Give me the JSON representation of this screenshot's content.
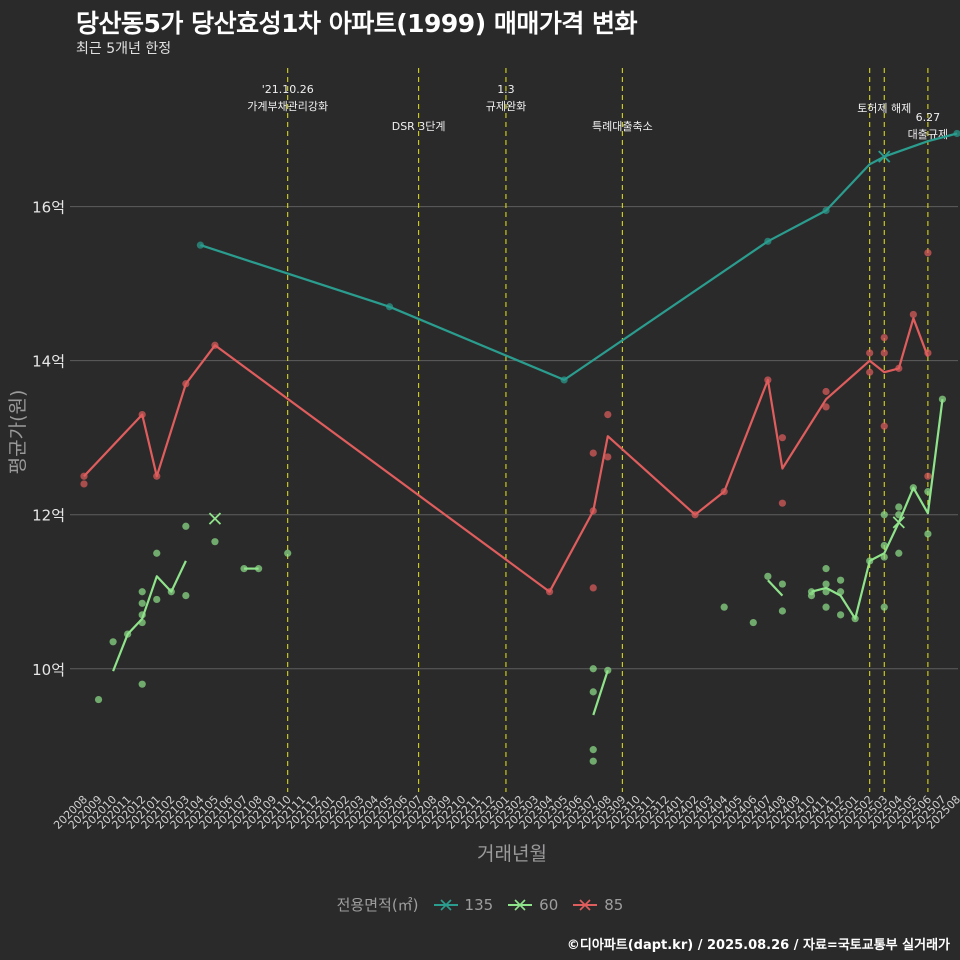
{
  "title": "당산동5가 당산효성1차 아파트(1999) 매매가격 변화",
  "subtitle": "최근 5개년 한정",
  "caption": "©디아파트(dapt.kr) / 2025.08.26 / 자료=국토교통부 실거래가",
  "chart_data": {
    "type": "line",
    "xlabel": "거래년월",
    "ylabel": "평균가(원)",
    "y_ticks": [
      {
        "value": 10,
        "label": "10억"
      },
      {
        "value": 12,
        "label": "12억"
      },
      {
        "value": 14,
        "label": "14억"
      },
      {
        "value": 16,
        "label": "16억"
      }
    ],
    "ylim": [
      8.4,
      17.8
    ],
    "categories": [
      "202008",
      "202009",
      "202010",
      "202011",
      "202012",
      "202101",
      "202102",
      "202103",
      "202104",
      "202105",
      "202106",
      "202107",
      "202108",
      "202109",
      "202110",
      "202111",
      "202112",
      "202201",
      "202202",
      "202203",
      "202204",
      "202205",
      "202206",
      "202207",
      "202208",
      "202209",
      "202210",
      "202211",
      "202212",
      "202301",
      "202302",
      "202303",
      "202304",
      "202305",
      "202306",
      "202307",
      "202308",
      "202309",
      "202310",
      "202311",
      "202312",
      "202401",
      "202402",
      "202403",
      "202404",
      "202405",
      "202406",
      "202407",
      "202408",
      "202409",
      "202410",
      "202411",
      "202412",
      "202501",
      "202502",
      "202503",
      "202504",
      "202505",
      "202506",
      "202507",
      "202508"
    ],
    "events": [
      {
        "x": "202110",
        "label": "'21.10.26\n가계부채관리강화",
        "row": 0
      },
      {
        "x": "202207",
        "label": "DSR 3단계",
        "row": 2
      },
      {
        "x": "202301",
        "label": "1.3\n규제완화",
        "row": 0
      },
      {
        "x": "202309",
        "label": "특례대출축소",
        "row": 2
      },
      {
        "x": "202502",
        "label": "",
        "row": 1
      },
      {
        "x": "202503",
        "label": "토허제 해제",
        "row": 1
      },
      {
        "x": "202506",
        "label": "6.27\n대출규제",
        "row": 3
      }
    ],
    "legend_title": "전용면적(㎡)",
    "series": [
      {
        "name": "135",
        "color": "#2a9d8f",
        "line": [
          [
            "202104",
            15.5
          ],
          [
            "202205",
            14.7
          ],
          [
            "202305",
            13.75
          ],
          [
            "202407",
            15.55
          ],
          [
            "202411",
            15.95
          ],
          [
            "202502",
            16.55
          ],
          [
            "202503",
            16.65
          ],
          [
            "202506",
            16.85
          ],
          [
            "202508",
            16.95
          ]
        ],
        "points": [
          [
            "202104",
            15.5
          ],
          [
            "202205",
            14.7
          ],
          [
            "202305",
            13.75
          ],
          [
            "202407",
            15.55
          ],
          [
            "202411",
            15.95
          ],
          [
            "202508",
            16.95
          ]
        ],
        "x_marks": [
          [
            "202503",
            16.65
          ]
        ]
      },
      {
        "name": "60",
        "color": "#8fe38a",
        "line": [
          [
            "202010",
            9.97
          ],
          [
            "202011",
            10.45
          ],
          [
            "202012",
            10.65
          ],
          [
            "202101",
            11.2
          ],
          [
            "202102",
            11.0
          ],
          [
            "202103",
            11.4
          ]
        ],
        "extra_lines": [
          [
            [
              "202107",
              11.3
            ],
            [
              "202108",
              11.3
            ]
          ],
          [
            [
              "202307",
              9.4
            ],
            [
              "202308",
              9.98
            ]
          ],
          [
            [
              "202407",
              11.15
            ],
            [
              "202408",
              10.95
            ]
          ],
          [
            [
              "202410",
              11.0
            ],
            [
              "202411",
              11.05
            ],
            [
              "202412",
              10.95
            ],
            [
              "202501",
              10.65
            ],
            [
              "202502",
              11.4
            ],
            [
              "202503",
              11.5
            ],
            [
              "202504",
              11.9
            ],
            [
              "202505",
              12.35
            ],
            [
              "202506",
              12.02
            ],
            [
              "202507",
              13.5
            ]
          ]
        ],
        "points": [
          [
            "202009",
            9.6
          ],
          [
            "202010",
            10.35
          ],
          [
            "202011",
            10.45
          ],
          [
            "202012",
            10.6
          ],
          [
            "202012",
            10.7
          ],
          [
            "202012",
            10.85
          ],
          [
            "202012",
            11.0
          ],
          [
            "202012",
            9.8
          ],
          [
            "202101",
            10.9
          ],
          [
            "202101",
            11.5
          ],
          [
            "202102",
            11.0
          ],
          [
            "202103",
            11.85
          ],
          [
            "202103",
            10.95
          ],
          [
            "202105",
            11.65
          ],
          [
            "202107",
            11.3
          ],
          [
            "202108",
            11.3
          ],
          [
            "202110",
            11.5
          ],
          [
            "202307",
            10.0
          ],
          [
            "202307",
            9.7
          ],
          [
            "202307",
            8.95
          ],
          [
            "202307",
            8.8
          ],
          [
            "202308",
            9.98
          ],
          [
            "202404",
            10.8
          ],
          [
            "202406",
            10.6
          ],
          [
            "202407",
            11.2
          ],
          [
            "202408",
            11.1
          ],
          [
            "202408",
            10.75
          ],
          [
            "202410",
            10.95
          ],
          [
            "202410",
            11.0
          ],
          [
            "202411",
            11.3
          ],
          [
            "202411",
            11.1
          ],
          [
            "202411",
            11.0
          ],
          [
            "202411",
            10.8
          ],
          [
            "202412",
            11.15
          ],
          [
            "202412",
            11.0
          ],
          [
            "202412",
            10.7
          ],
          [
            "202501",
            10.65
          ],
          [
            "202502",
            11.4
          ],
          [
            "202503",
            12.0
          ],
          [
            "202503",
            11.6
          ],
          [
            "202503",
            11.45
          ],
          [
            "202503",
            10.8
          ],
          [
            "202504",
            12.1
          ],
          [
            "202504",
            12.0
          ],
          [
            "202504",
            11.5
          ],
          [
            "202505",
            12.35
          ],
          [
            "202506",
            12.3
          ],
          [
            "202506",
            11.75
          ],
          [
            "202507",
            13.5
          ]
        ],
        "x_marks": [
          [
            "202105",
            11.95
          ],
          [
            "202504",
            11.9
          ]
        ]
      },
      {
        "name": "85",
        "color": "#e05d5d",
        "line": [
          [
            "202008",
            12.5
          ],
          [
            "202012",
            13.3
          ],
          [
            "202101",
            12.5
          ],
          [
            "202103",
            13.7
          ],
          [
            "202105",
            14.2
          ],
          [
            "202304",
            11.0
          ],
          [
            "202307",
            12.05
          ],
          [
            "202308",
            13.02
          ],
          [
            "202402",
            12.0
          ],
          [
            "202404",
            12.3
          ],
          [
            "202407",
            13.75
          ],
          [
            "202408",
            12.6
          ],
          [
            "202411",
            13.5
          ],
          [
            "202502",
            14.0
          ],
          [
            "202503",
            13.85
          ],
          [
            "202504",
            13.9
          ],
          [
            "202505",
            14.55
          ],
          [
            "202506",
            14.05
          ]
        ],
        "points": [
          [
            "202008",
            12.5
          ],
          [
            "202008",
            12.4
          ],
          [
            "202012",
            13.3
          ],
          [
            "202101",
            12.5
          ],
          [
            "202103",
            13.7
          ],
          [
            "202105",
            14.2
          ],
          [
            "202304",
            11.0
          ],
          [
            "202307",
            12.8
          ],
          [
            "202307",
            12.05
          ],
          [
            "202307",
            11.05
          ],
          [
            "202308",
            13.3
          ],
          [
            "202308",
            12.75
          ],
          [
            "202402",
            12.0
          ],
          [
            "202404",
            12.3
          ],
          [
            "202407",
            13.75
          ],
          [
            "202408",
            13.0
          ],
          [
            "202408",
            12.15
          ],
          [
            "202411",
            13.6
          ],
          [
            "202411",
            13.4
          ],
          [
            "202502",
            14.1
          ],
          [
            "202502",
            13.85
          ],
          [
            "202503",
            14.3
          ],
          [
            "202503",
            14.1
          ],
          [
            "202503",
            13.15
          ],
          [
            "202504",
            13.9
          ],
          [
            "202505",
            14.6
          ],
          [
            "202506",
            15.4
          ],
          [
            "202506",
            14.1
          ],
          [
            "202506",
            12.5
          ]
        ],
        "x_marks": []
      }
    ]
  }
}
